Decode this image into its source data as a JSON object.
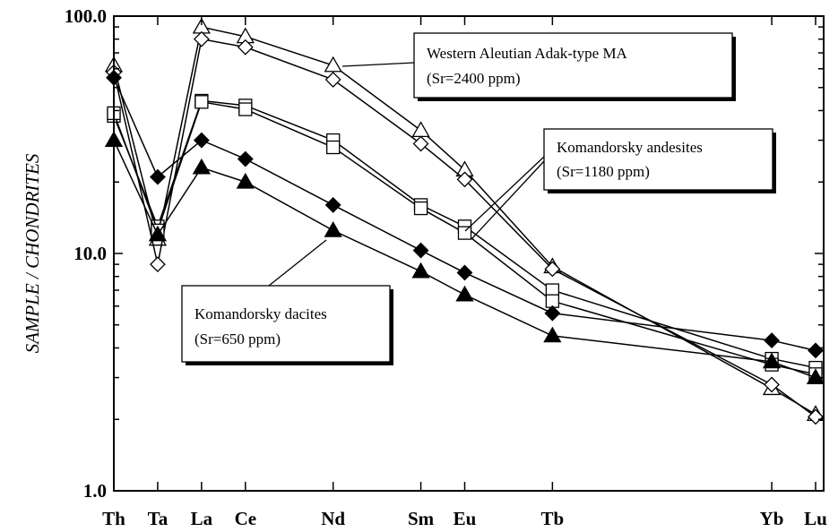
{
  "chart_data": {
    "type": "line",
    "y_scale": "log",
    "ylim": [
      1.0,
      100.0
    ],
    "ylabel": "SAMPLE / CHONDRITES",
    "y_ticks": [
      {
        "value": 1,
        "label": "1.0"
      },
      {
        "value": 10,
        "label": "10.0"
      },
      {
        "value": 100,
        "label": "100.0"
      }
    ],
    "categories": [
      "Th",
      "Ta",
      "La",
      "Ce",
      "Nd",
      "Sm",
      "Eu",
      "Tb",
      "Yb",
      "Lu"
    ],
    "category_positions": [
      0,
      1,
      2,
      3,
      5,
      7,
      8,
      10,
      15,
      16
    ],
    "grid": false,
    "series": [
      {
        "marker": "open-triangle",
        "values": [
          62,
          11.5,
          90,
          82,
          62,
          33,
          22.5,
          8.8,
          2.7,
          2.1
        ]
      },
      {
        "marker": "open-diamond",
        "values": [
          58,
          9,
          80,
          74,
          54,
          29,
          20.5,
          8.6,
          2.8,
          2.05
        ]
      },
      {
        "marker": "open-square",
        "values": [
          38,
          13,
          44,
          42,
          30,
          16,
          13,
          7,
          3.6,
          3.3
        ]
      },
      {
        "marker": "open-square",
        "values": [
          39,
          12.5,
          43.5,
          40.5,
          28,
          15.5,
          12.2,
          6.3,
          3.4,
          3.1
        ]
      },
      {
        "marker": "filled-diamond",
        "values": [
          55,
          21,
          30,
          25,
          16,
          10.3,
          8.3,
          5.6,
          4.3,
          3.9
        ]
      },
      {
        "marker": "filled-triangle",
        "values": [
          30,
          12,
          23,
          20,
          12.5,
          8.4,
          6.7,
          4.5,
          3.5,
          3.0
        ]
      }
    ],
    "annotations": [
      {
        "line1": "Western Aleutian Adak-type MA",
        "line2": "(Sr=2400 ppm)"
      },
      {
        "line1": "Komandorsky andesites",
        "line2": "(Sr=1180 ppm)"
      },
      {
        "line1": "Komandorsky dacites",
        "line2": "(Sr=650 ppm)"
      }
    ]
  }
}
